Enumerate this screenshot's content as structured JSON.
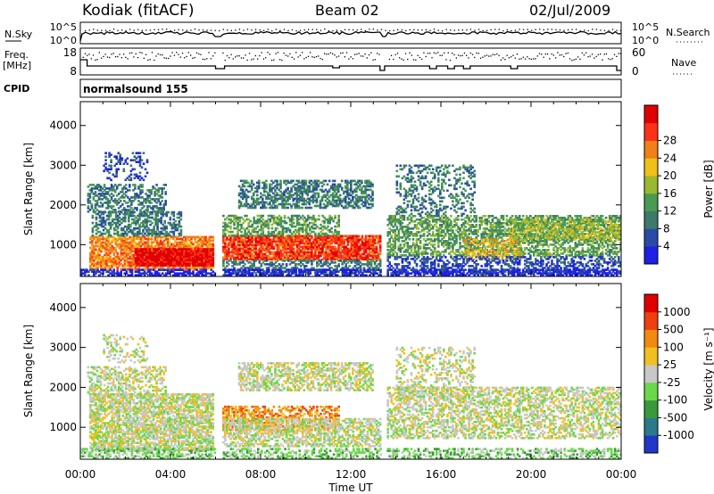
{
  "header": {
    "station": "Kodiak (fitACF)",
    "beam": "Beam 02",
    "date": "02/Jul/2009"
  },
  "top_panels": {
    "nsky": {
      "label": "N.Sky",
      "left_ticks": [
        "10^5",
        "10^0"
      ],
      "right_ticks": [
        "10^5",
        "10^0"
      ],
      "right_label": "N.Search"
    },
    "freq": {
      "label_line1": "Freq.",
      "label_line2": "[MHz]",
      "left_ticks": [
        "18",
        "8"
      ],
      "right_ticks": [
        "60",
        "0"
      ],
      "right_label": "Nave"
    },
    "cpid": {
      "label": "CPID",
      "text": "normalsound 155"
    }
  },
  "chart_data": [
    {
      "type": "heatmap",
      "parameter": "Power",
      "ylabel": "Slant Range [km]",
      "xlabel": "Time UT",
      "ylim": [
        200,
        4600
      ],
      "xlim_hours": [
        0,
        24
      ],
      "yticks": [
        1000,
        2000,
        3000,
        4000
      ],
      "xtick_labels": [
        "00:00",
        "04:00",
        "08:00",
        "12:00",
        "16:00",
        "20:00",
        "00:00"
      ],
      "colorbar": {
        "label": "Power [dB]",
        "ticks": [
          "4",
          "8",
          "12",
          "16",
          "20",
          "24",
          "28"
        ],
        "colors": [
          "#1f1fe6",
          "#2a4aa8",
          "#3c7a6a",
          "#4a9a52",
          "#9ab830",
          "#f0c018",
          "#f08018",
          "#ff3018",
          "#e00000"
        ]
      },
      "regions": [
        {
          "t0": 0.4,
          "t1": 5.9,
          "r0": 350,
          "r1": 1200,
          "level": 6,
          "density": 0.75
        },
        {
          "t0": 2.4,
          "t1": 5.9,
          "r0": 450,
          "r1": 900,
          "level": 8,
          "density": 0.9
        },
        {
          "t0": 0.5,
          "t1": 4.5,
          "r0": 1200,
          "r1": 1800,
          "level": 2,
          "density": 0.55
        },
        {
          "t0": 0.3,
          "t1": 3.8,
          "r0": 1800,
          "r1": 2500,
          "level": 2,
          "density": 0.45
        },
        {
          "t0": 1.0,
          "t1": 3.0,
          "r0": 2600,
          "r1": 3300,
          "level": 1,
          "density": 0.25
        },
        {
          "t0": 6.3,
          "t1": 13.3,
          "r0": 600,
          "r1": 1200,
          "level": 7,
          "density": 0.85
        },
        {
          "t0": 6.3,
          "t1": 11.5,
          "r0": 1200,
          "r1": 1700,
          "level": 3,
          "density": 0.5
        },
        {
          "t0": 7.0,
          "t1": 13.0,
          "r0": 1900,
          "r1": 2600,
          "level": 2,
          "density": 0.55
        },
        {
          "t0": 6.3,
          "t1": 13.3,
          "r0": 250,
          "r1": 600,
          "level": 2,
          "density": 0.5
        },
        {
          "t0": 13.6,
          "t1": 24.0,
          "r0": 700,
          "r1": 1700,
          "level": 3,
          "density": 0.55
        },
        {
          "t0": 14.0,
          "t1": 17.5,
          "r0": 1700,
          "r1": 3000,
          "level": 2,
          "density": 0.3
        },
        {
          "t0": 17.0,
          "t1": 19.5,
          "r0": 600,
          "r1": 1100,
          "level": 5,
          "density": 0.45
        },
        {
          "t0": 19.0,
          "t1": 24.0,
          "r0": 1100,
          "r1": 1600,
          "level": 4,
          "density": 0.5
        },
        {
          "t0": 13.6,
          "t1": 24.0,
          "r0": 250,
          "r1": 700,
          "level": 1,
          "density": 0.45
        },
        {
          "t0": 0.0,
          "t1": 24.0,
          "r0": 200,
          "r1": 350,
          "level": 0,
          "density": 0.6
        }
      ]
    },
    {
      "type": "heatmap",
      "parameter": "Velocity",
      "ylabel": "Slant Range [km]",
      "xlabel": "Time UT",
      "ylim": [
        200,
        4600
      ],
      "xlim_hours": [
        0,
        24
      ],
      "yticks": [
        1000,
        2000,
        3000,
        4000
      ],
      "xtick_labels": [
        "00:00",
        "04:00",
        "08:00",
        "12:00",
        "16:00",
        "20:00",
        "00:00"
      ],
      "colorbar": {
        "label": "Velocity [m s⁻¹]",
        "ticks": [
          "1000",
          "500",
          "100",
          "25",
          "-25",
          "-100",
          "-500",
          "-1000"
        ],
        "colors": [
          "#2038c8",
          "#2a7a8a",
          "#3a9a3a",
          "#6ad84a",
          "#c8c8c8",
          "#f0c020",
          "#f08a10",
          "#f04010",
          "#e00000"
        ]
      },
      "regions": [
        {
          "t0": 0.4,
          "t1": 5.9,
          "r0": 400,
          "r1": 1800,
          "level": 4,
          "density": 0.7
        },
        {
          "t0": 0.3,
          "t1": 3.8,
          "r0": 1800,
          "r1": 2500,
          "level": 4,
          "density": 0.45
        },
        {
          "t0": 1.0,
          "t1": 3.0,
          "r0": 2600,
          "r1": 3300,
          "level": 4,
          "density": 0.25
        },
        {
          "t0": 6.3,
          "t1": 11.5,
          "r0": 900,
          "r1": 1500,
          "level": 6,
          "density": 0.55
        },
        {
          "t0": 6.3,
          "t1": 13.3,
          "r0": 500,
          "r1": 1200,
          "level": 4,
          "density": 0.6
        },
        {
          "t0": 7.0,
          "t1": 13.0,
          "r0": 1900,
          "r1": 2600,
          "level": 4,
          "density": 0.55
        },
        {
          "t0": 13.6,
          "t1": 24.0,
          "r0": 700,
          "r1": 2000,
          "level": 4,
          "density": 0.5
        },
        {
          "t0": 14.0,
          "t1": 17.5,
          "r0": 1700,
          "r1": 3000,
          "level": 4,
          "density": 0.3
        },
        {
          "t0": 0.0,
          "t1": 24.0,
          "r0": 200,
          "r1": 450,
          "level": 3,
          "density": 0.45
        }
      ]
    }
  ]
}
